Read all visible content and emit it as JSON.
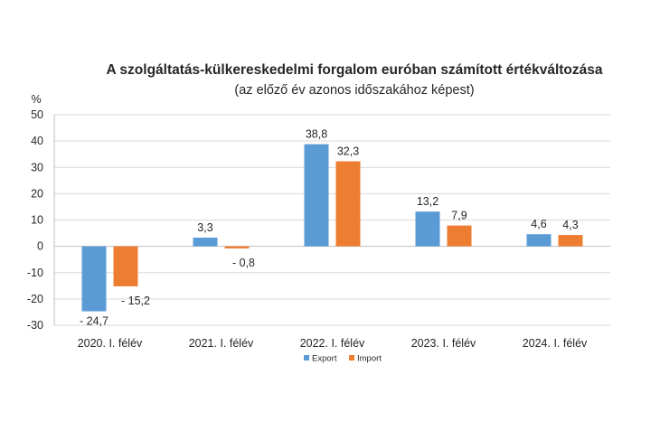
{
  "chart_data": {
    "type": "bar",
    "title": "A szolgáltatás-külkereskedelmi forgalom euróban számított értékváltozása",
    "subtitle": "(az előző év azonos időszakához képest)",
    "ylabel": "%",
    "xlabel": "",
    "ylim": [
      -30,
      50
    ],
    "yticks": [
      50,
      40,
      30,
      20,
      10,
      0,
      -10,
      -20,
      -30
    ],
    "ytick_labels": [
      "50",
      "40",
      "30",
      "20",
      "10",
      "0",
      "-10",
      "-20",
      "-30"
    ],
    "grid": true,
    "legend_position": "bottom",
    "categories": [
      "2020. I. félév",
      "2021. I. félév",
      "2022. I. félév",
      "2023. I. félév",
      "2024. I. félév"
    ],
    "series": [
      {
        "name": "Export",
        "color": "#5b9bd5",
        "values": [
          -24.7,
          3.3,
          38.8,
          13.2,
          4.6
        ],
        "labels": [
          "- 24,7",
          "3,3",
          "38,8",
          "13,2",
          "4,6"
        ]
      },
      {
        "name": "Import",
        "color": "#ed7d31",
        "values": [
          -15.2,
          -0.8,
          32.3,
          7.9,
          4.3
        ],
        "labels": [
          "- 15,2",
          "- 0,8",
          "32,3",
          "7,9",
          "4,3"
        ]
      }
    ]
  }
}
